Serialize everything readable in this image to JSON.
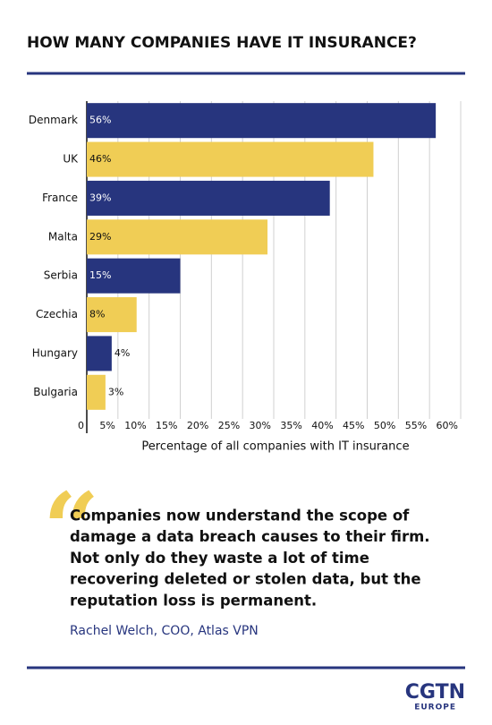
{
  "chart_data": {
    "type": "bar",
    "orientation": "horizontal",
    "title": "HOW MANY COMPANIES HAVE IT INSURANCE?",
    "categories": [
      "Denmark",
      "UK",
      "France",
      "Malta",
      "Serbia",
      "Czechia",
      "Hungary",
      "Bulgaria"
    ],
    "values": [
      56,
      46,
      39,
      29,
      15,
      8,
      4,
      3
    ],
    "value_labels": [
      "56%",
      "46%",
      "39%",
      "29%",
      "15%",
      "8%",
      "4%",
      "3%"
    ],
    "colors": [
      "#27357e",
      "#f0cd55",
      "#27357e",
      "#f0cd55",
      "#27357e",
      "#f0cd55",
      "#27357e",
      "#f0cd55"
    ],
    "xlabel": "Percentage of all companies with IT insurance",
    "xlim": [
      0,
      60
    ],
    "xticks": [
      0,
      {
        "value": 5,
        "label": "5%"
      },
      {
        "value": 10,
        "label": "10%"
      },
      {
        "value": 15,
        "label": "15%"
      },
      {
        "value": 20,
        "label": "20%"
      },
      {
        "value": 25,
        "label": "25%"
      },
      {
        "value": 30,
        "label": "30%"
      },
      {
        "value": 35,
        "label": "35%"
      },
      {
        "value": 40,
        "label": "40%"
      },
      {
        "value": 45,
        "label": "45%"
      },
      {
        "value": 50,
        "label": "50%"
      },
      {
        "value": 55,
        "label": "55%"
      },
      {
        "value": 60,
        "label": "60%"
      }
    ],
    "grid": true
  },
  "quote": {
    "lines": [
      "Companies now understand the scope of",
      "damage a data breach causes to their firm.",
      "Not only do they waste a lot of time",
      "recovering deleted or stolen data, but the",
      "reputation loss is permanent."
    ],
    "attribution": "Rachel Welch, COO, Atlas VPN"
  },
  "logo": {
    "name": "CGTN",
    "region": "EUROPE"
  }
}
